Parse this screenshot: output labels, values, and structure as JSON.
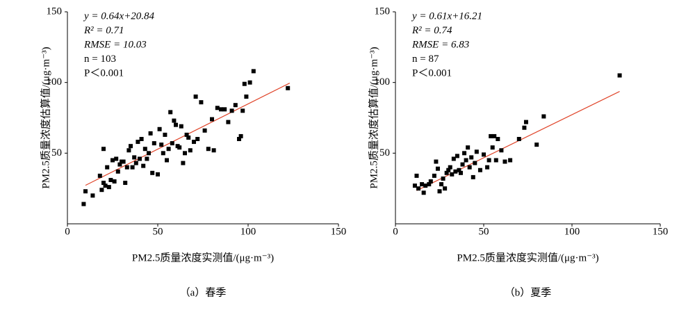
{
  "chart_data": [
    {
      "type": "scatter",
      "caption": "（a）春季",
      "xlabel": "PM2.5质量浓度实测值/(μg·m⁻³)",
      "ylabel": "PM2.5质量浓度估算值/(μg·m⁻³)",
      "annotations": [
        "y = 0.64x+20.84",
        "R² = 0.71",
        "RMSE = 10.03",
        "n = 103",
        "P＜0.001"
      ],
      "fit": {
        "slope": 0.64,
        "intercept": 20.84,
        "x_range": [
          10,
          123
        ],
        "color": "#e0452a"
      },
      "color": "#000000",
      "xlim": [
        0,
        150
      ],
      "ylim": [
        0,
        150
      ],
      "xticks": [
        0,
        50,
        100,
        150
      ],
      "yticks": [
        50,
        100,
        150
      ],
      "x": [
        9,
        10,
        14,
        18,
        19,
        20,
        20,
        21,
        22,
        23,
        24,
        25,
        26,
        27,
        28,
        29,
        30,
        31,
        32,
        33,
        34,
        35,
        36,
        37,
        38,
        39,
        40,
        41,
        42,
        43,
        44,
        45,
        46,
        47,
        48,
        50,
        51,
        52,
        53,
        54,
        55,
        56,
        57,
        58,
        59,
        60,
        61,
        62,
        63,
        64,
        65,
        66,
        67,
        68,
        70,
        71,
        72,
        74,
        76,
        78,
        80,
        81,
        83,
        85,
        87,
        89,
        91,
        93,
        95,
        96,
        97,
        98,
        99,
        101,
        103,
        122
      ],
      "values": [
        14,
        23,
        20,
        34,
        24,
        53,
        29,
        27,
        40,
        26,
        31,
        45,
        30,
        46,
        37,
        42,
        44,
        44,
        29,
        40,
        52,
        55,
        40,
        47,
        43,
        58,
        46,
        60,
        41,
        53,
        46,
        50,
        64,
        36,
        57,
        35,
        67,
        56,
        50,
        63,
        45,
        53,
        79,
        57,
        73,
        70,
        55,
        54,
        69,
        43,
        50,
        63,
        61,
        52,
        58,
        90,
        60,
        86,
        66,
        53,
        74,
        52,
        82,
        81,
        81,
        72,
        80,
        84,
        60,
        62,
        80,
        99,
        90,
        100,
        108,
        96
      ]
    },
    {
      "type": "scatter",
      "caption": "（b）夏季",
      "xlabel": "PM2.5质量浓度实测值/(μg·m⁻³)",
      "ylabel": "PM2.5质量浓度估算值/(μg·m⁻³)",
      "annotations": [
        "y = 0.61x+16.21",
        "R² = 0.74",
        "RMSE = 6.83",
        "n = 87",
        "P＜0.001"
      ],
      "fit": {
        "slope": 0.61,
        "intercept": 16.21,
        "x_range": [
          12,
          127
        ],
        "color": "#e0452a"
      },
      "color": "#000000",
      "xlim": [
        0,
        150
      ],
      "ylim": [
        0,
        150
      ],
      "xticks": [
        0,
        50,
        100,
        150
      ],
      "yticks": [
        50,
        100,
        150
      ],
      "x": [
        11,
        12,
        13,
        15,
        16,
        17,
        19,
        20,
        22,
        23,
        24,
        25,
        26,
        27,
        28,
        29,
        30,
        31,
        32,
        33,
        34,
        35,
        36,
        37,
        38,
        39,
        40,
        41,
        42,
        43,
        44,
        45,
        46,
        48,
        50,
        52,
        53,
        54,
        55,
        56,
        57,
        58,
        60,
        62,
        65,
        70,
        73,
        74,
        80,
        84,
        127
      ],
      "values": [
        27,
        34,
        25,
        28,
        22,
        27,
        28,
        30,
        34,
        44,
        39,
        23,
        28,
        32,
        25,
        36,
        38,
        40,
        35,
        46,
        37,
        48,
        38,
        36,
        42,
        50,
        45,
        54,
        40,
        47,
        33,
        43,
        51,
        38,
        49,
        40,
        45,
        62,
        54,
        62,
        45,
        60,
        52,
        44,
        45,
        60,
        68,
        72,
        56,
        76,
        105
      ]
    }
  ]
}
